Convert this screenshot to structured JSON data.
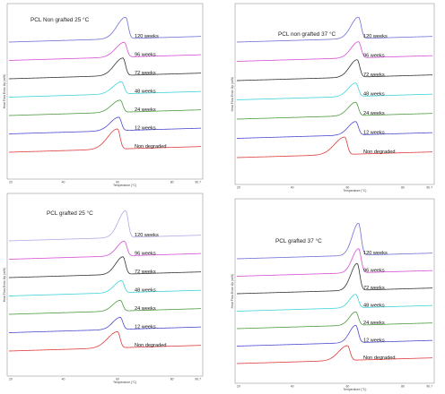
{
  "chart_data": [
    {
      "type": "line",
      "title": "PCL Non grafted 25 °C",
      "xlabel": "Temperature (°C)",
      "ylabel": "Heat Flow Endo Up (mW)",
      "xlim": [
        20,
        90.7
      ],
      "x_ticks": [
        "20",
        "40",
        "60",
        "80",
        "90.7"
      ],
      "series": [
        {
          "name": "120 weeks",
          "color": "#6f6fd6",
          "peak_temperature": 63,
          "peak_height": 1.6,
          "onset_width": 7
        },
        {
          "name": "96 weeks",
          "color": "#d64fd6",
          "peak_temperature": 62.5,
          "peak_height": 1.1,
          "onset_width": 7
        },
        {
          "name": "72 weeks",
          "color": "#333333",
          "peak_temperature": 62,
          "peak_height": 1.3,
          "onset_width": 7
        },
        {
          "name": "48 weeks",
          "color": "#3fd3dc",
          "peak_temperature": 61.5,
          "peak_height": 0.9,
          "onset_width": 7
        },
        {
          "name": "24 weeks",
          "color": "#4c9a3e",
          "peak_temperature": 61,
          "peak_height": 0.9,
          "onset_width": 7
        },
        {
          "name": "12 weeks",
          "color": "#4a4ad0",
          "peak_temperature": 60.5,
          "peak_height": 1.0,
          "onset_width": 7
        },
        {
          "name": "Non degraded",
          "color": "#e03b3b",
          "peak_temperature": 60,
          "peak_height": 1.5,
          "onset_width": 8
        }
      ]
    },
    {
      "type": "line",
      "title": "PCL non grafted 37 °C",
      "xlabel": "Temperature (°C)",
      "ylabel": "Heat Flow Endo Up (mW)",
      "xlim": [
        20,
        90.7
      ],
      "x_ticks": [
        "20",
        "40",
        "60",
        "80",
        "90.7"
      ],
      "series": [
        {
          "name": "120 weeks",
          "color": "#6f6fd6",
          "peak_temperature": 64,
          "peak_height": 1.6,
          "onset_width": 6
        },
        {
          "name": "96 weeks",
          "color": "#d64fd6",
          "peak_temperature": 64,
          "peak_height": 1.2,
          "onset_width": 6
        },
        {
          "name": "72 weeks",
          "color": "#333333",
          "peak_temperature": 63.5,
          "peak_height": 1.3,
          "onset_width": 6
        },
        {
          "name": "48 weeks",
          "color": "#3fd3dc",
          "peak_temperature": 63,
          "peak_height": 1.0,
          "onset_width": 6
        },
        {
          "name": "24 weeks",
          "color": "#4c9a3e",
          "peak_temperature": 63,
          "peak_height": 1.0,
          "onset_width": 6
        },
        {
          "name": "12 weeks",
          "color": "#4a4ad0",
          "peak_temperature": 63,
          "peak_height": 1.0,
          "onset_width": 6
        },
        {
          "name": "Non degraded",
          "color": "#e03b3b",
          "peak_temperature": 59,
          "peak_height": 1.3,
          "onset_width": 8
        }
      ]
    },
    {
      "type": "line",
      "title": "PCL grafted 25 °C",
      "xlabel": "Temperature (°C)",
      "ylabel": "Heat Flow Endo Up (mW)",
      "xlim": [
        20,
        90.7
      ],
      "x_ticks": [
        "20",
        "40",
        "60",
        "80",
        "90.7"
      ],
      "series": [
        {
          "name": "120 weeks",
          "color": "#b7a6e6",
          "peak_temperature": 63,
          "peak_height": 2.0,
          "onset_width": 6
        },
        {
          "name": "96 weeks",
          "color": "#d64fd6",
          "peak_temperature": 62.5,
          "peak_height": 1.1,
          "onset_width": 6
        },
        {
          "name": "72 weeks",
          "color": "#333333",
          "peak_temperature": 62,
          "peak_height": 1.3,
          "onset_width": 6
        },
        {
          "name": "48 weeks",
          "color": "#3fd3dc",
          "peak_temperature": 61.5,
          "peak_height": 0.9,
          "onset_width": 6
        },
        {
          "name": "24 weeks",
          "color": "#4c9a3e",
          "peak_temperature": 61,
          "peak_height": 0.8,
          "onset_width": 6
        },
        {
          "name": "12 weeks",
          "color": "#4a4ad0",
          "peak_temperature": 61,
          "peak_height": 0.9,
          "onset_width": 6
        },
        {
          "name": "Non degraded",
          "color": "#e03b3b",
          "peak_temperature": 60,
          "peak_height": 1.2,
          "onset_width": 8
        }
      ]
    },
    {
      "type": "line",
      "title": "PCL grafted 37 °C",
      "xlabel": "Temperature (°C)",
      "ylabel": "Heat Flow Endo Up (mW)",
      "xlim": [
        20,
        90.7
      ],
      "x_ticks": [
        "20",
        "40",
        "60",
        "80",
        "90.7"
      ],
      "series": [
        {
          "name": "120 weeks",
          "color": "#6f6fd6",
          "peak_temperature": 64,
          "peak_height": 2.4,
          "onset_width": 5
        },
        {
          "name": "96 weeks",
          "color": "#d64fd6",
          "peak_temperature": 64,
          "peak_height": 1.8,
          "onset_width": 5
        },
        {
          "name": "72 weeks",
          "color": "#333333",
          "peak_temperature": 63.5,
          "peak_height": 2.0,
          "onset_width": 5
        },
        {
          "name": "48 weeks",
          "color": "#3fd3dc",
          "peak_temperature": 63,
          "peak_height": 1.0,
          "onset_width": 5
        },
        {
          "name": "24 weeks",
          "color": "#4c9a3e",
          "peak_temperature": 63,
          "peak_height": 1.0,
          "onset_width": 5
        },
        {
          "name": "12 weeks",
          "color": "#4a4ad0",
          "peak_temperature": 63,
          "peak_height": 1.3,
          "onset_width": 5
        },
        {
          "name": "Non degraded",
          "color": "#e03b3b",
          "peak_temperature": 60,
          "peak_height": 1.1,
          "onset_width": 7
        }
      ]
    }
  ]
}
